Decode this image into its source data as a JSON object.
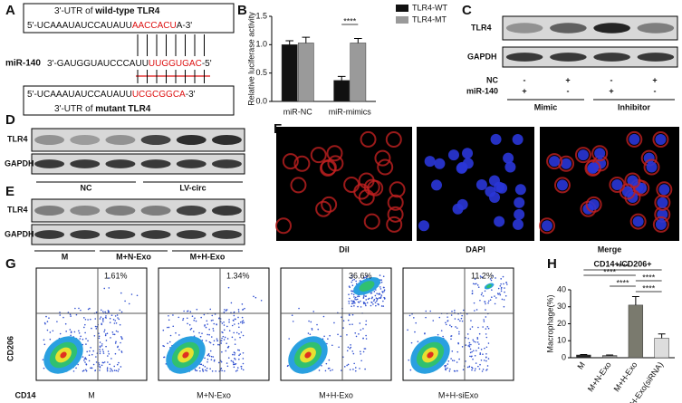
{
  "panel_labels": [
    "A",
    "B",
    "C",
    "D",
    "E",
    "F",
    "G",
    "H"
  ],
  "sequences": {
    "wild_type": {
      "caption_prefix": "3'-UTR of ",
      "caption_bold": "wild-type TLR4",
      "seq": [
        "5'-UCAAAUAUCCAUAUU",
        "AACCACU",
        "A-3'"
      ]
    },
    "mirna": {
      "name": "miR-140",
      "seq": [
        "3'-GAUGGUAUCCCAUU",
        "UUGGUGAC",
        "-5'"
      ]
    },
    "mutant": {
      "caption_prefix": "3'-UTR of ",
      "caption_bold": "mutant TLR4",
      "seq": [
        "5'-UCAAAUAUCCAUAUU",
        "UCGCGGCA",
        "-3'"
      ]
    }
  },
  "chart_data": [
    {
      "type": "bar",
      "ylabel": "Relative luciferase activity",
      "categories": [
        "miR-NC",
        "miR-mimics"
      ],
      "series": [
        {
          "name": "TLR4-WT",
          "color": "#111111",
          "values": [
            1.0,
            0.37
          ],
          "errors": [
            0.07,
            0.07
          ]
        },
        {
          "name": "TLR4-MT",
          "color": "#9a9a9a",
          "values": [
            1.03,
            1.03
          ],
          "errors": [
            0.1,
            0.08
          ]
        }
      ],
      "ylim": [
        0,
        1.5
      ],
      "yticks": [
        {
          "value": 0,
          "label": "0.0"
        },
        {
          "value": 0.5,
          "label": "0.5"
        },
        {
          "value": 1,
          "label": "1.0"
        },
        {
          "value": 1.5,
          "label": "1.5"
        }
      ],
      "annotations": [
        "****"
      ]
    },
    {
      "type": "bar",
      "title": "CD14+/CD206+",
      "ylabel": "Macrophage(%)",
      "categories": [
        "M",
        "M+N-Exo",
        "M+H-Exo",
        "M+H-Exo(siRNA)"
      ],
      "values": [
        1.6,
        1.3,
        31,
        11.5
      ],
      "errors": [
        0.3,
        0.3,
        5,
        2.5
      ],
      "colors": [
        "#222222",
        "#888888",
        "#7a7a6e",
        "#dddddd"
      ],
      "ylim": [
        0,
        40
      ],
      "yticks": [
        0,
        10,
        20,
        30,
        40
      ],
      "annotations": [
        "****",
        "****",
        "****",
        "****",
        "****"
      ]
    }
  ],
  "blot_c": {
    "rows": [
      "TLR4",
      "GAPDH"
    ],
    "conditions": [
      "NC",
      "miR-140"
    ],
    "signs": [
      [
        "-",
        "+",
        "-",
        "+"
      ],
      [
        "+",
        "-",
        "+",
        "-"
      ]
    ],
    "groups": [
      "Mimic",
      "Inhibitor"
    ]
  },
  "blot_d": {
    "rows": [
      "TLR4",
      "GAPDH"
    ],
    "groups": [
      "NC",
      "LV-circ"
    ]
  },
  "blot_e": {
    "rows": [
      "TLR4",
      "GAPDH"
    ],
    "groups": [
      "M",
      "M+N-Exo",
      "M+H-Exo"
    ]
  },
  "fluorescence": {
    "channels": [
      "Dil",
      "DAPI",
      "Merge"
    ]
  },
  "flow": {
    "y_axis": "CD206",
    "x_axis": "CD14",
    "plots": [
      {
        "percent": "1.61%",
        "label": "M"
      },
      {
        "percent": "1.34%",
        "label": "M+N-Exo"
      },
      {
        "percent": "36.6%",
        "label": "M+H-Exo"
      },
      {
        "percent": "11.2%",
        "label": "M+H-siExo"
      }
    ]
  }
}
